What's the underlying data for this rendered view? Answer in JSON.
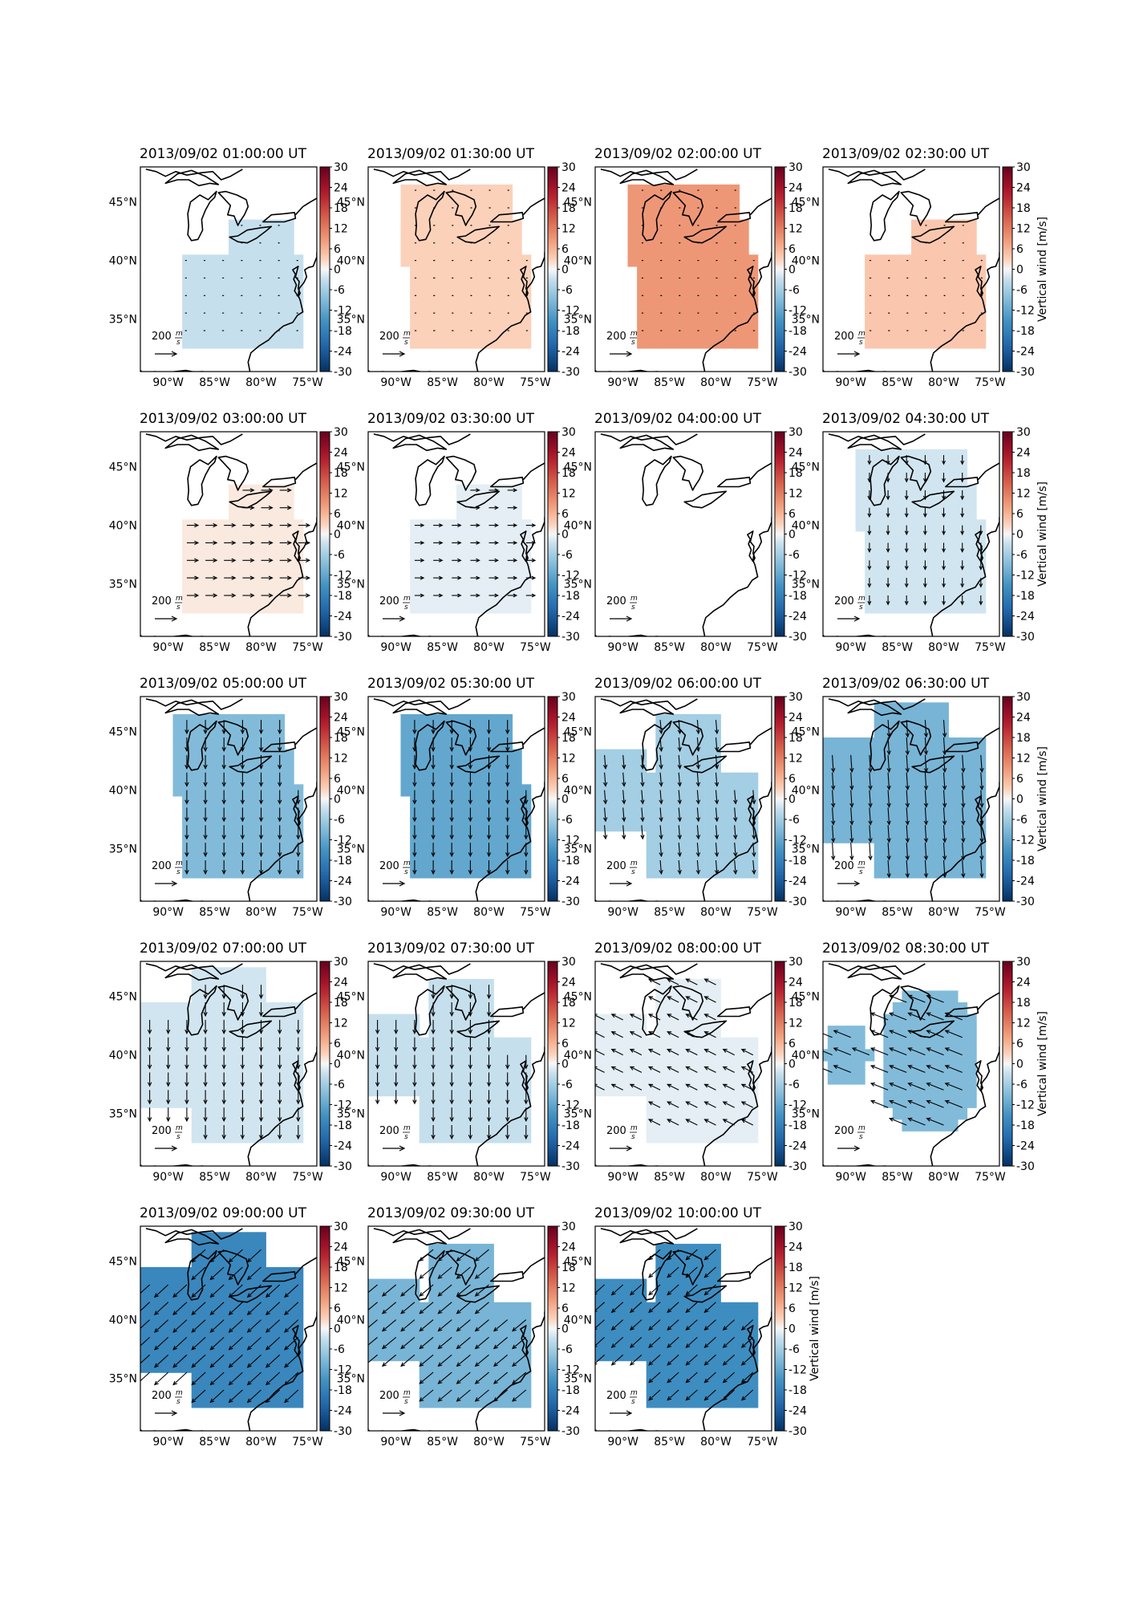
{
  "figure": {
    "colorbar": {
      "label": "Vertical wind [m/s]",
      "ticks": [
        30,
        24,
        18,
        12,
        6,
        0,
        -6,
        -12,
        -18,
        -24,
        -30
      ],
      "range": [
        -30,
        30
      ],
      "colormap": "RdBu_r",
      "label_on_columns": [
        4
      ]
    },
    "latitude_ticks": [
      "45°N",
      "40°N",
      "35°N"
    ],
    "longitude_ticks": [
      "90°W",
      "85°W",
      "80°W",
      "75°W"
    ],
    "reference_vector": {
      "magnitude": "200",
      "unit_numerator": "m",
      "unit_denominator": "s"
    },
    "panels": [
      {
        "title": "2013/09/02 01:00:00 UT",
        "vertical_wind": -3,
        "region": "east",
        "arrow": [
          -0.1,
          0.0
        ]
      },
      {
        "title": "2013/09/02 01:30:00 UT",
        "vertical_wind": 3,
        "region": "east-north",
        "arrow": [
          0.1,
          0.0
        ]
      },
      {
        "title": "2013/09/02 02:00:00 UT",
        "vertical_wind": 9,
        "region": "east-north",
        "arrow": [
          0.1,
          0.0
        ]
      },
      {
        "title": "2013/09/02 02:30:00 UT",
        "vertical_wind": 4,
        "region": "east",
        "arrow": [
          0.1,
          0.0
        ]
      },
      {
        "title": "2013/09/02 03:00:00 UT",
        "vertical_wind": 1,
        "region": "east",
        "arrow": [
          1.0,
          0.0
        ]
      },
      {
        "title": "2013/09/02 03:30:00 UT",
        "vertical_wind": -1,
        "region": "east",
        "arrow": [
          0.8,
          0.0
        ]
      },
      {
        "title": "2013/09/02 04:00:00 UT",
        "vertical_wind": 0,
        "region": "none",
        "arrow": [
          0.0,
          0.0
        ]
      },
      {
        "title": "2013/09/02 04:30:00 UT",
        "vertical_wind": -2,
        "region": "east-north",
        "arrow": [
          0.0,
          -0.8
        ]
      },
      {
        "title": "2013/09/02 05:00:00 UT",
        "vertical_wind": -9,
        "region": "east-north",
        "arrow": [
          0.0,
          -1.2
        ]
      },
      {
        "title": "2013/09/02 05:30:00 UT",
        "vertical_wind": -12,
        "region": "east-north",
        "arrow": [
          0.0,
          -1.2
        ]
      },
      {
        "title": "2013/09/02 06:00:00 UT",
        "vertical_wind": -6,
        "region": "wide-split",
        "arrow": [
          0.1,
          -1.2
        ]
      },
      {
        "title": "2013/09/02 06:30:00 UT",
        "vertical_wind": -10,
        "region": "wide",
        "arrow": [
          0.1,
          -1.5
        ]
      },
      {
        "title": "2013/09/02 07:00:00 UT",
        "vertical_wind": -2,
        "region": "wide",
        "arrow": [
          0.0,
          -1.2
        ]
      },
      {
        "title": "2013/09/02 07:30:00 UT",
        "vertical_wind": -3,
        "region": "wide-split",
        "arrow": [
          0.0,
          -1.2
        ]
      },
      {
        "title": "2013/09/02 08:00:00 UT",
        "vertical_wind": -1,
        "region": "wide-split",
        "arrow": [
          -1.0,
          0.5
        ]
      },
      {
        "title": "2013/09/02 08:30:00 UT",
        "vertical_wind": -9,
        "region": "west-east",
        "arrow": [
          -1.5,
          0.6
        ]
      },
      {
        "title": "2013/09/02 09:00:00 UT",
        "vertical_wind": -17,
        "region": "wide",
        "arrow": [
          -1.2,
          -1.1
        ]
      },
      {
        "title": "2013/09/02 09:30:00 UT",
        "vertical_wind": -10,
        "region": "wide-split",
        "arrow": [
          -1.2,
          -1.0
        ]
      },
      {
        "title": "2013/09/02 10:00:00 UT",
        "vertical_wind": -16,
        "region": "wide-split",
        "arrow": [
          -1.0,
          -0.9
        ]
      }
    ]
  }
}
